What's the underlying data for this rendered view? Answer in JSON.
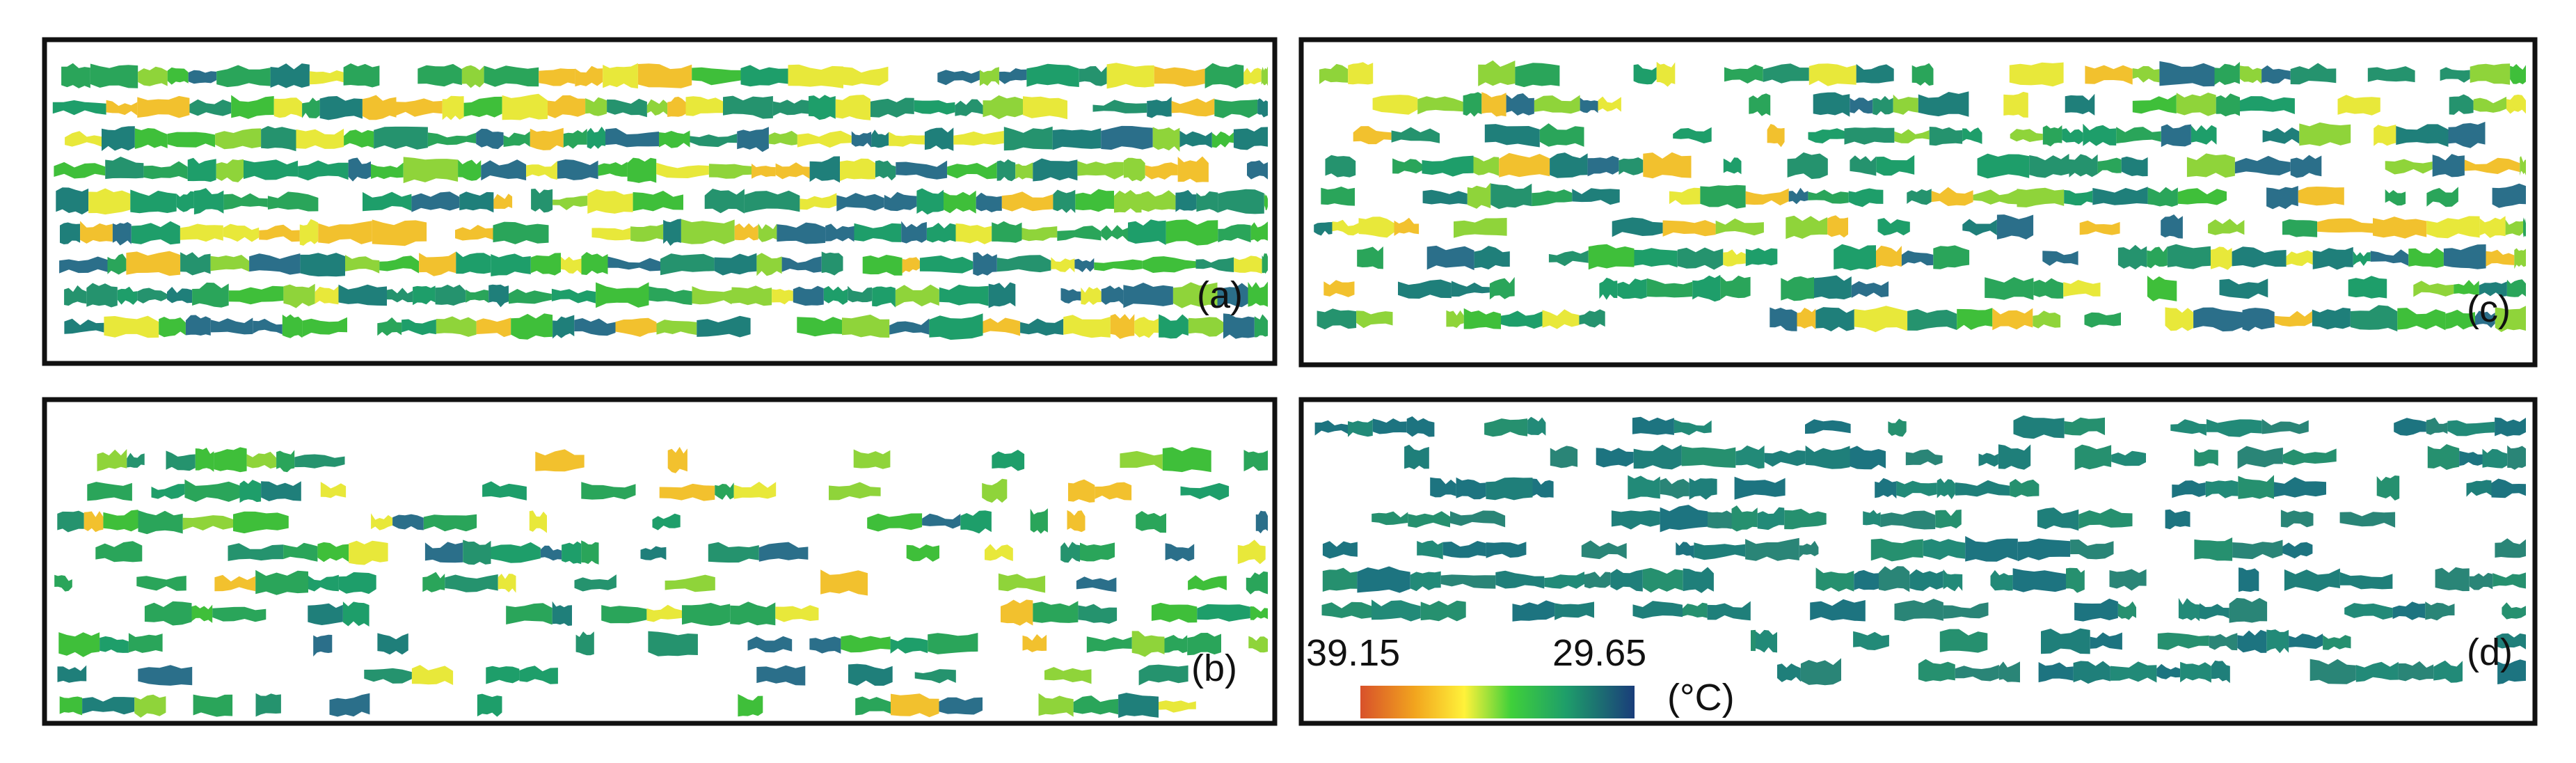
{
  "panels": [
    {
      "label": "(a)"
    },
    {
      "label": "(b)"
    },
    {
      "label": "(c)"
    },
    {
      "label": "(d)"
    }
  ],
  "colorbar": {
    "max_label": "39.15",
    "min_label": "29.65",
    "unit": "(°C)"
  }
}
